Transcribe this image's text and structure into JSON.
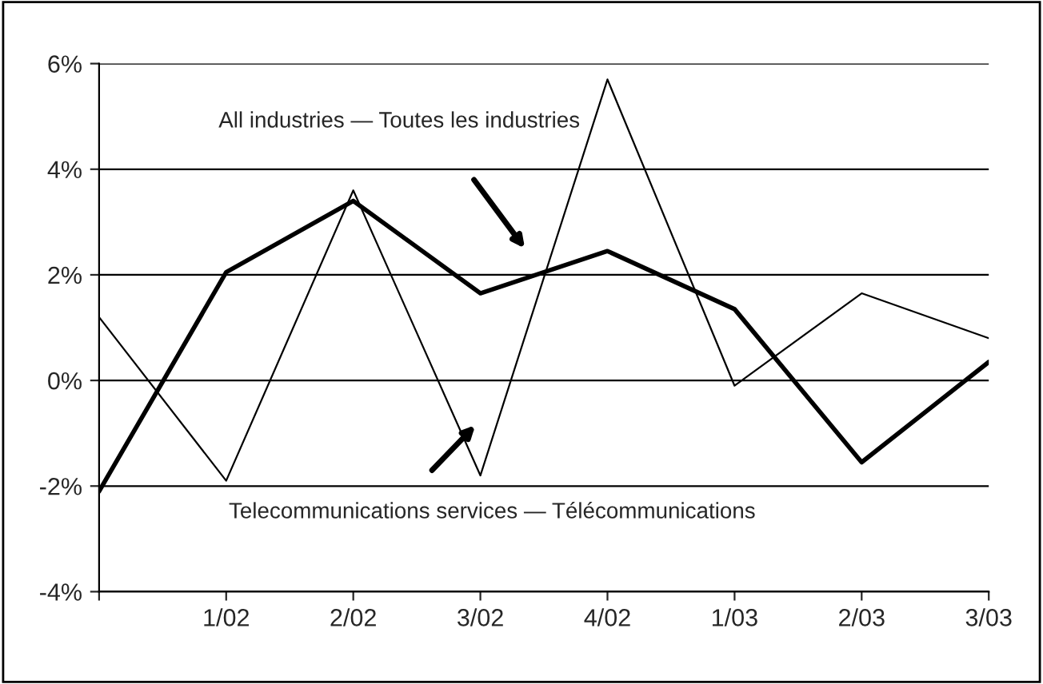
{
  "chart_data": {
    "type": "line",
    "categories": [
      null,
      "1/02",
      "2/02",
      "3/02",
      "4/02",
      "1/03",
      "2/03",
      "3/03"
    ],
    "series": [
      {
        "color": "#000000",
        "values": [
          -2.1,
          2.05,
          3.4,
          1.65,
          2.45,
          1.35,
          -1.55,
          0.35
        ]
      },
      {
        "color": "#000000",
        "values": [
          1.2,
          -1.9,
          3.6,
          -1.8,
          5.7,
          -0.1,
          1.65,
          0.8
        ]
      }
    ],
    "annotations": [
      "All industries — Toutes les industries",
      "Telecommunications services — Télécommunications"
    ],
    "ylim": [
      -4,
      6
    ],
    "yticks": [
      {
        "value": -4,
        "label": "-4%"
      },
      {
        "value": -2,
        "label": "-2%"
      },
      {
        "value": 0,
        "label": "0%"
      },
      {
        "value": 2,
        "label": "2%"
      },
      {
        "value": 4,
        "label": "4%"
      },
      {
        "value": 6,
        "label": "6%"
      }
    ],
    "grid": "y",
    "legend": false,
    "marker": "none",
    "line_style": "solid"
  }
}
